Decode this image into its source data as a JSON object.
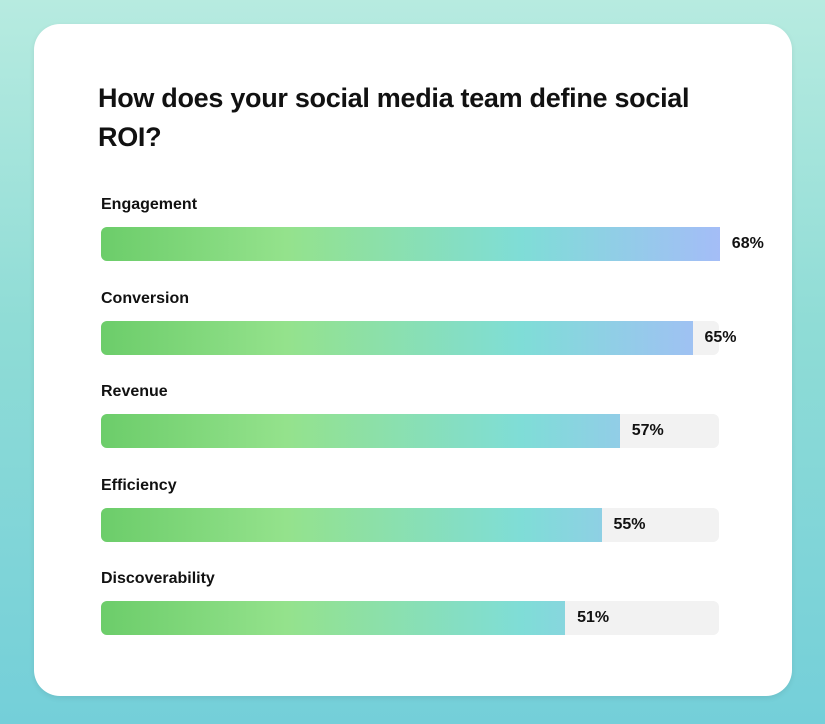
{
  "chart_data": {
    "type": "bar",
    "orientation": "horizontal",
    "title": "How does your social media team define social ROI?",
    "categories": [
      "Engagement",
      "Conversion",
      "Revenue",
      "Efficiency",
      "Discoverability"
    ],
    "values": [
      68,
      65,
      57,
      55,
      51
    ],
    "value_labels": [
      "68%",
      "65%",
      "57%",
      "55%",
      "51%"
    ],
    "xlim": [
      0,
      100
    ],
    "unit": "%",
    "grid": false,
    "legend": "none",
    "colors": {
      "gradient_start": "#6ccd6a",
      "gradient_mid": "#94e28c",
      "gradient_teal": "#7fddd7",
      "gradient_end": "#a4bdf7",
      "track": "#f2f2f2"
    }
  }
}
